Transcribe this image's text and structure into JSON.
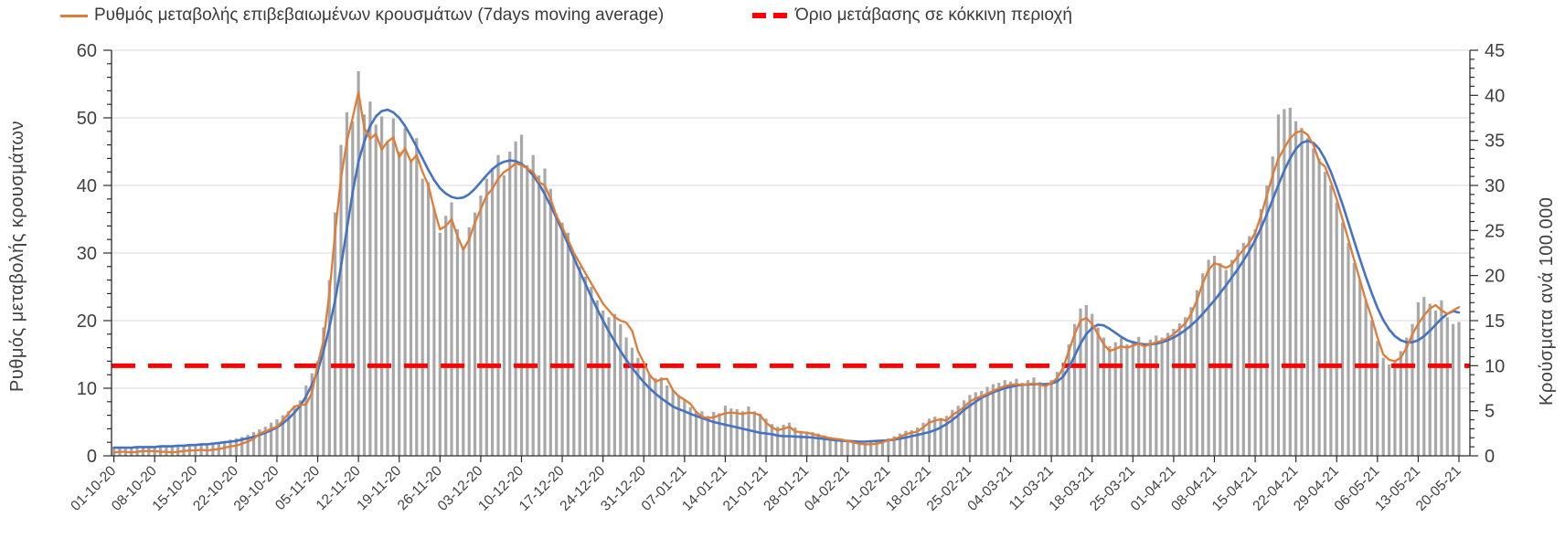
{
  "legend": {
    "ma_label": "Ρυθμός μεταβολής επιβεβαιωμένων κρουσμάτων (7days moving average)",
    "threshold_label": "Όριο μετάβασης σε κόκκινη περιοχή"
  },
  "axes": {
    "left_title": "Ρυθμός μεταβολής κρουσμάτων",
    "right_title": "Κρούσματα ανά 100.000"
  },
  "colors": {
    "bar": "#A8A8A8",
    "ma_line": "#E07C35",
    "trend_line": "#4472C4",
    "threshold": "#FF0000",
    "gridline": "#D9D9D9",
    "axis": "#2B2B2B",
    "text": "#404040"
  },
  "chart_data": {
    "type": "bar",
    "subtype": "daily bars + 7-day moving average line + smoothed trend line + horizontal threshold",
    "x_start_label": "01-10-20",
    "x_end_label": "20-05-21",
    "x_step_days": 1,
    "x_tick_labels": [
      "01-10-20",
      "08-10-20",
      "15-10-20",
      "22-10-20",
      "29-10-20",
      "05-11-20",
      "12-11-20",
      "19-11-20",
      "26-11-20",
      "03-12-20",
      "10-12-20",
      "17-12-20",
      "24-12-20",
      "31-12-20",
      "07-01-21",
      "14-01-21",
      "21-01-21",
      "28-01-21",
      "04-02-21",
      "11-02-21",
      "18-02-21",
      "25-02-21",
      "04-03-21",
      "11-03-21",
      "18-03-21",
      "25-03-21",
      "01-04-21",
      "08-04-21",
      "15-04-21",
      "22-04-21",
      "29-04-21",
      "06-05-21",
      "13-05-21",
      "20-05-21"
    ],
    "left_axis": {
      "title": "Ρυθμός μεταβολής κρουσμάτων",
      "range": [
        0,
        60
      ],
      "major_ticks": [
        0,
        10,
        20,
        30,
        40,
        50,
        60
      ],
      "minor_step": 2
    },
    "right_axis": {
      "title": "Κρούσματα ανά 100.000",
      "range": [
        0,
        45
      ],
      "major_ticks": [
        0,
        5,
        10,
        15,
        20,
        25,
        30,
        35,
        40,
        45
      ],
      "minor_step": 1
    },
    "grid": "horizontal",
    "legend_position": "top",
    "threshold": {
      "label": "Όριο μετάβασης σε κόκκινη περιοχή",
      "value_right_axis": 10,
      "value_left_axis": 13.33,
      "style": "dashed",
      "color_key": "threshold"
    },
    "bars": {
      "name": "daily-values (no legend entry)",
      "color_key": "bar",
      "values": [
        1.3,
        1.2,
        1.3,
        1.3,
        1.4,
        1.3,
        1.4,
        1.4,
        1.5,
        1.5,
        1.4,
        1.6,
        1.6,
        1.7,
        1.7,
        1.8,
        1.8,
        1.9,
        2.0,
        2.2,
        2.4,
        2.6,
        2.8,
        3.1,
        3.5,
        3.9,
        4.3,
        4.9,
        5.4,
        6.0,
        6.6,
        7.4,
        8.2,
        10.4,
        12.2,
        14.0,
        19.0,
        26.0,
        36.0,
        46.0,
        50.8,
        49.5,
        56.9,
        50.5,
        52.4,
        49.0,
        50.2,
        46.5,
        49.9,
        45.0,
        48.5,
        43.9,
        47.0,
        41.0,
        40.5,
        36.6,
        33.0,
        35.5,
        37.5,
        33.5,
        31.0,
        33.8,
        36.0,
        38.5,
        41.0,
        42.5,
        44.5,
        41.5,
        45.0,
        46.5,
        47.5,
        43.0,
        44.5,
        41.5,
        42.5,
        39.5,
        35.8,
        34.5,
        33.0,
        29.5,
        28.0,
        26.5,
        25.0,
        23.0,
        21.5,
        20.5,
        21.0,
        19.5,
        17.5,
        16.0,
        14.5,
        13.0,
        12.0,
        11.5,
        11.6,
        10.4,
        9.7,
        9.0,
        8.3,
        7.2,
        6.5,
        6.6,
        5.9,
        6.5,
        6.3,
        7.4,
        7.0,
        6.9,
        6.6,
        7.3,
        6.6,
        6.2,
        5.5,
        4.7,
        4.3,
        4.6,
        4.9,
        4.2,
        3.7,
        3.6,
        3.5,
        3.3,
        3.0,
        2.8,
        2.6,
        2.5,
        2.3,
        2.1,
        2.0,
        1.9,
        2.0,
        2.2,
        2.4,
        2.6,
        2.9,
        3.3,
        3.7,
        3.8,
        4.2,
        4.9,
        5.5,
        5.8,
        5.6,
        5.9,
        6.8,
        7.4,
        8.2,
        9.0,
        9.4,
        9.6,
        10.2,
        10.6,
        10.8,
        11.2,
        11.0,
        11.4,
        10.8,
        11.2,
        11.6,
        10.9,
        10.4,
        11.2,
        12.4,
        13.8,
        16.5,
        19.5,
        21.8,
        22.3,
        21.0,
        19.0,
        17.5,
        16.2,
        16.8,
        17.4,
        16.5,
        17.0,
        17.6,
        16.2,
        17.2,
        17.8,
        17.5,
        18.2,
        18.8,
        19.6,
        20.5,
        22.0,
        24.5,
        27.0,
        29.0,
        29.6,
        28.5,
        27.5,
        29.0,
        30.5,
        31.5,
        32.5,
        33.5,
        36.5,
        40.0,
        44.3,
        50.5,
        51.3,
        51.5,
        49.5,
        48.5,
        47.0,
        45.5,
        44.0,
        42.0,
        40.0,
        37.5,
        34.5,
        31.5,
        28.5,
        26.0,
        23.0,
        20.0,
        17.0,
        14.5,
        13.5,
        14.0,
        15.5,
        17.5,
        19.5,
        22.7,
        23.5,
        22.5,
        21.5,
        23.0,
        20.5,
        19.5,
        19.8
      ]
    },
    "series": [
      {
        "name": "Ρυθμός μεταβολής επιβεβαιωμένων κρουσμάτων (7days moving average)",
        "color_key": "ma_line",
        "values": [
          0.5,
          0.6,
          0.6,
          0.5,
          0.6,
          0.7,
          0.7,
          0.7,
          0.6,
          0.6,
          0.5,
          0.6,
          0.7,
          0.8,
          0.8,
          0.9,
          0.8,
          0.9,
          1.0,
          1.2,
          1.4,
          1.5,
          1.8,
          2.1,
          2.5,
          3.3,
          3.6,
          4.0,
          4.3,
          5.2,
          6.3,
          7.3,
          7.5,
          7.6,
          9.3,
          13.5,
          17.0,
          24.0,
          33.0,
          41.0,
          46.5,
          50.0,
          53.8,
          48.5,
          46.9,
          47.6,
          45.3,
          46.5,
          47.1,
          44.2,
          45.5,
          43.5,
          44.5,
          42.0,
          40.0,
          36.5,
          33.5,
          34.0,
          35.0,
          32.5,
          30.5,
          32.0,
          34.5,
          36.5,
          38.5,
          39.5,
          41.0,
          42.0,
          42.5,
          43.3,
          43.0,
          42.5,
          42.0,
          40.5,
          40.0,
          38.0,
          35.5,
          33.8,
          32.0,
          30.0,
          28.5,
          27.0,
          25.5,
          24.0,
          22.5,
          21.5,
          20.5,
          20.0,
          19.7,
          18.5,
          15.5,
          13.8,
          12.0,
          11.0,
          11.3,
          11.4,
          9.7,
          8.8,
          8.3,
          7.7,
          6.5,
          5.8,
          5.6,
          5.7,
          6.0,
          6.3,
          6.4,
          6.3,
          6.2,
          6.4,
          6.3,
          6.0,
          4.9,
          4.2,
          3.8,
          4.0,
          4.3,
          3.6,
          3.5,
          3.4,
          3.2,
          3.0,
          2.8,
          2.6,
          2.5,
          2.4,
          2.2,
          2.0,
          1.8,
          1.7,
          1.7,
          1.8,
          2.0,
          2.3,
          2.5,
          2.8,
          3.2,
          3.4,
          3.6,
          4.2,
          4.9,
          5.2,
          5.4,
          5.2,
          6.0,
          6.6,
          7.2,
          8.0,
          8.5,
          8.8,
          9.2,
          9.6,
          10.0,
          10.3,
          10.5,
          10.6,
          10.5,
          10.6,
          10.7,
          10.5,
          10.3,
          10.8,
          11.5,
          13.0,
          15.5,
          18.0,
          20.0,
          20.4,
          19.5,
          18.0,
          16.5,
          15.5,
          15.8,
          16.2,
          16.0,
          16.3,
          16.6,
          16.2,
          16.5,
          16.8,
          17.0,
          17.4,
          18.0,
          18.8,
          19.6,
          21.0,
          23.0,
          25.5,
          27.5,
          28.5,
          28.2,
          27.8,
          28.3,
          29.5,
          30.5,
          31.5,
          33.0,
          35.5,
          38.5,
          41.5,
          44.0,
          45.5,
          47.0,
          47.8,
          48.1,
          47.5,
          46.0,
          43.5,
          42.8,
          40.5,
          38.0,
          35.0,
          32.0,
          29.0,
          26.0,
          23.0,
          20.5,
          17.5,
          15.0,
          14.2,
          14.0,
          14.5,
          16.0,
          18.0,
          19.5,
          20.8,
          21.8,
          22.3,
          21.5,
          21.0,
          21.5,
          22.0
        ]
      },
      {
        "name": "unlabeled-smoothed-trend (no legend entry)",
        "color_key": "trend_line",
        "values": [
          1.2,
          1.2,
          1.2,
          1.2,
          1.3,
          1.3,
          1.3,
          1.3,
          1.4,
          1.4,
          1.4,
          1.5,
          1.5,
          1.6,
          1.6,
          1.7,
          1.7,
          1.8,
          1.9,
          2.0,
          2.1,
          2.2,
          2.4,
          2.6,
          2.8,
          3.1,
          3.4,
          3.8,
          4.2,
          4.8,
          5.5,
          6.4,
          7.4,
          8.8,
          10.5,
          12.5,
          15.5,
          19.0,
          23.0,
          28.0,
          33.5,
          39.0,
          43.5,
          46.5,
          48.8,
          50.2,
          51.0,
          51.2,
          50.8,
          50.0,
          48.8,
          47.3,
          45.7,
          44.0,
          42.3,
          40.8,
          39.6,
          38.8,
          38.3,
          38.1,
          38.2,
          38.7,
          39.5,
          40.5,
          41.5,
          42.4,
          43.1,
          43.5,
          43.7,
          43.6,
          43.2,
          42.5,
          41.5,
          40.2,
          38.7,
          37.0,
          35.2,
          33.3,
          31.3,
          29.3,
          27.3,
          25.4,
          23.5,
          21.7,
          20.0,
          18.4,
          16.9,
          15.5,
          14.2,
          13.0,
          11.9,
          10.9,
          10.0,
          9.2,
          8.5,
          7.9,
          7.3,
          6.9,
          6.6,
          6.2,
          5.9,
          5.6,
          5.3,
          5.0,
          4.8,
          4.6,
          4.4,
          4.2,
          4.0,
          3.8,
          3.6,
          3.4,
          3.3,
          3.2,
          3.0,
          2.9,
          2.9,
          2.85,
          2.8,
          2.75,
          2.7,
          2.6,
          2.5,
          2.4,
          2.3,
          2.25,
          2.2,
          2.15,
          2.1,
          2.1,
          2.15,
          2.2,
          2.25,
          2.3,
          2.4,
          2.55,
          2.7,
          2.9,
          3.1,
          3.3,
          3.5,
          3.8,
          4.2,
          4.7,
          5.3,
          6.0,
          6.8,
          7.4,
          8.0,
          8.6,
          9.0,
          9.4,
          9.7,
          10.0,
          10.2,
          10.4,
          10.5,
          10.55,
          10.6,
          10.6,
          10.6,
          10.7,
          11.0,
          11.7,
          13.0,
          14.8,
          16.6,
          18.0,
          18.9,
          19.4,
          19.3,
          18.8,
          18.2,
          17.6,
          17.1,
          16.8,
          16.6,
          16.5,
          16.5,
          16.6,
          16.8,
          17.1,
          17.5,
          18.0,
          18.6,
          19.3,
          20.1,
          21.0,
          22.0,
          23.0,
          24.1,
          25.2,
          26.4,
          27.6,
          28.9,
          30.3,
          31.9,
          33.7,
          35.7,
          37.9,
          40.1,
          42.2,
          44.0,
          45.4,
          46.3,
          46.6,
          46.3,
          45.4,
          43.9,
          42.0,
          39.7,
          37.2,
          34.5,
          31.8,
          29.1,
          26.5,
          24.1,
          21.9,
          20.1,
          18.7,
          17.7,
          17.1,
          16.8,
          16.8,
          17.1,
          17.7,
          18.5,
          19.4,
          20.3,
          21.0,
          21.4,
          21.2
        ]
      }
    ]
  }
}
